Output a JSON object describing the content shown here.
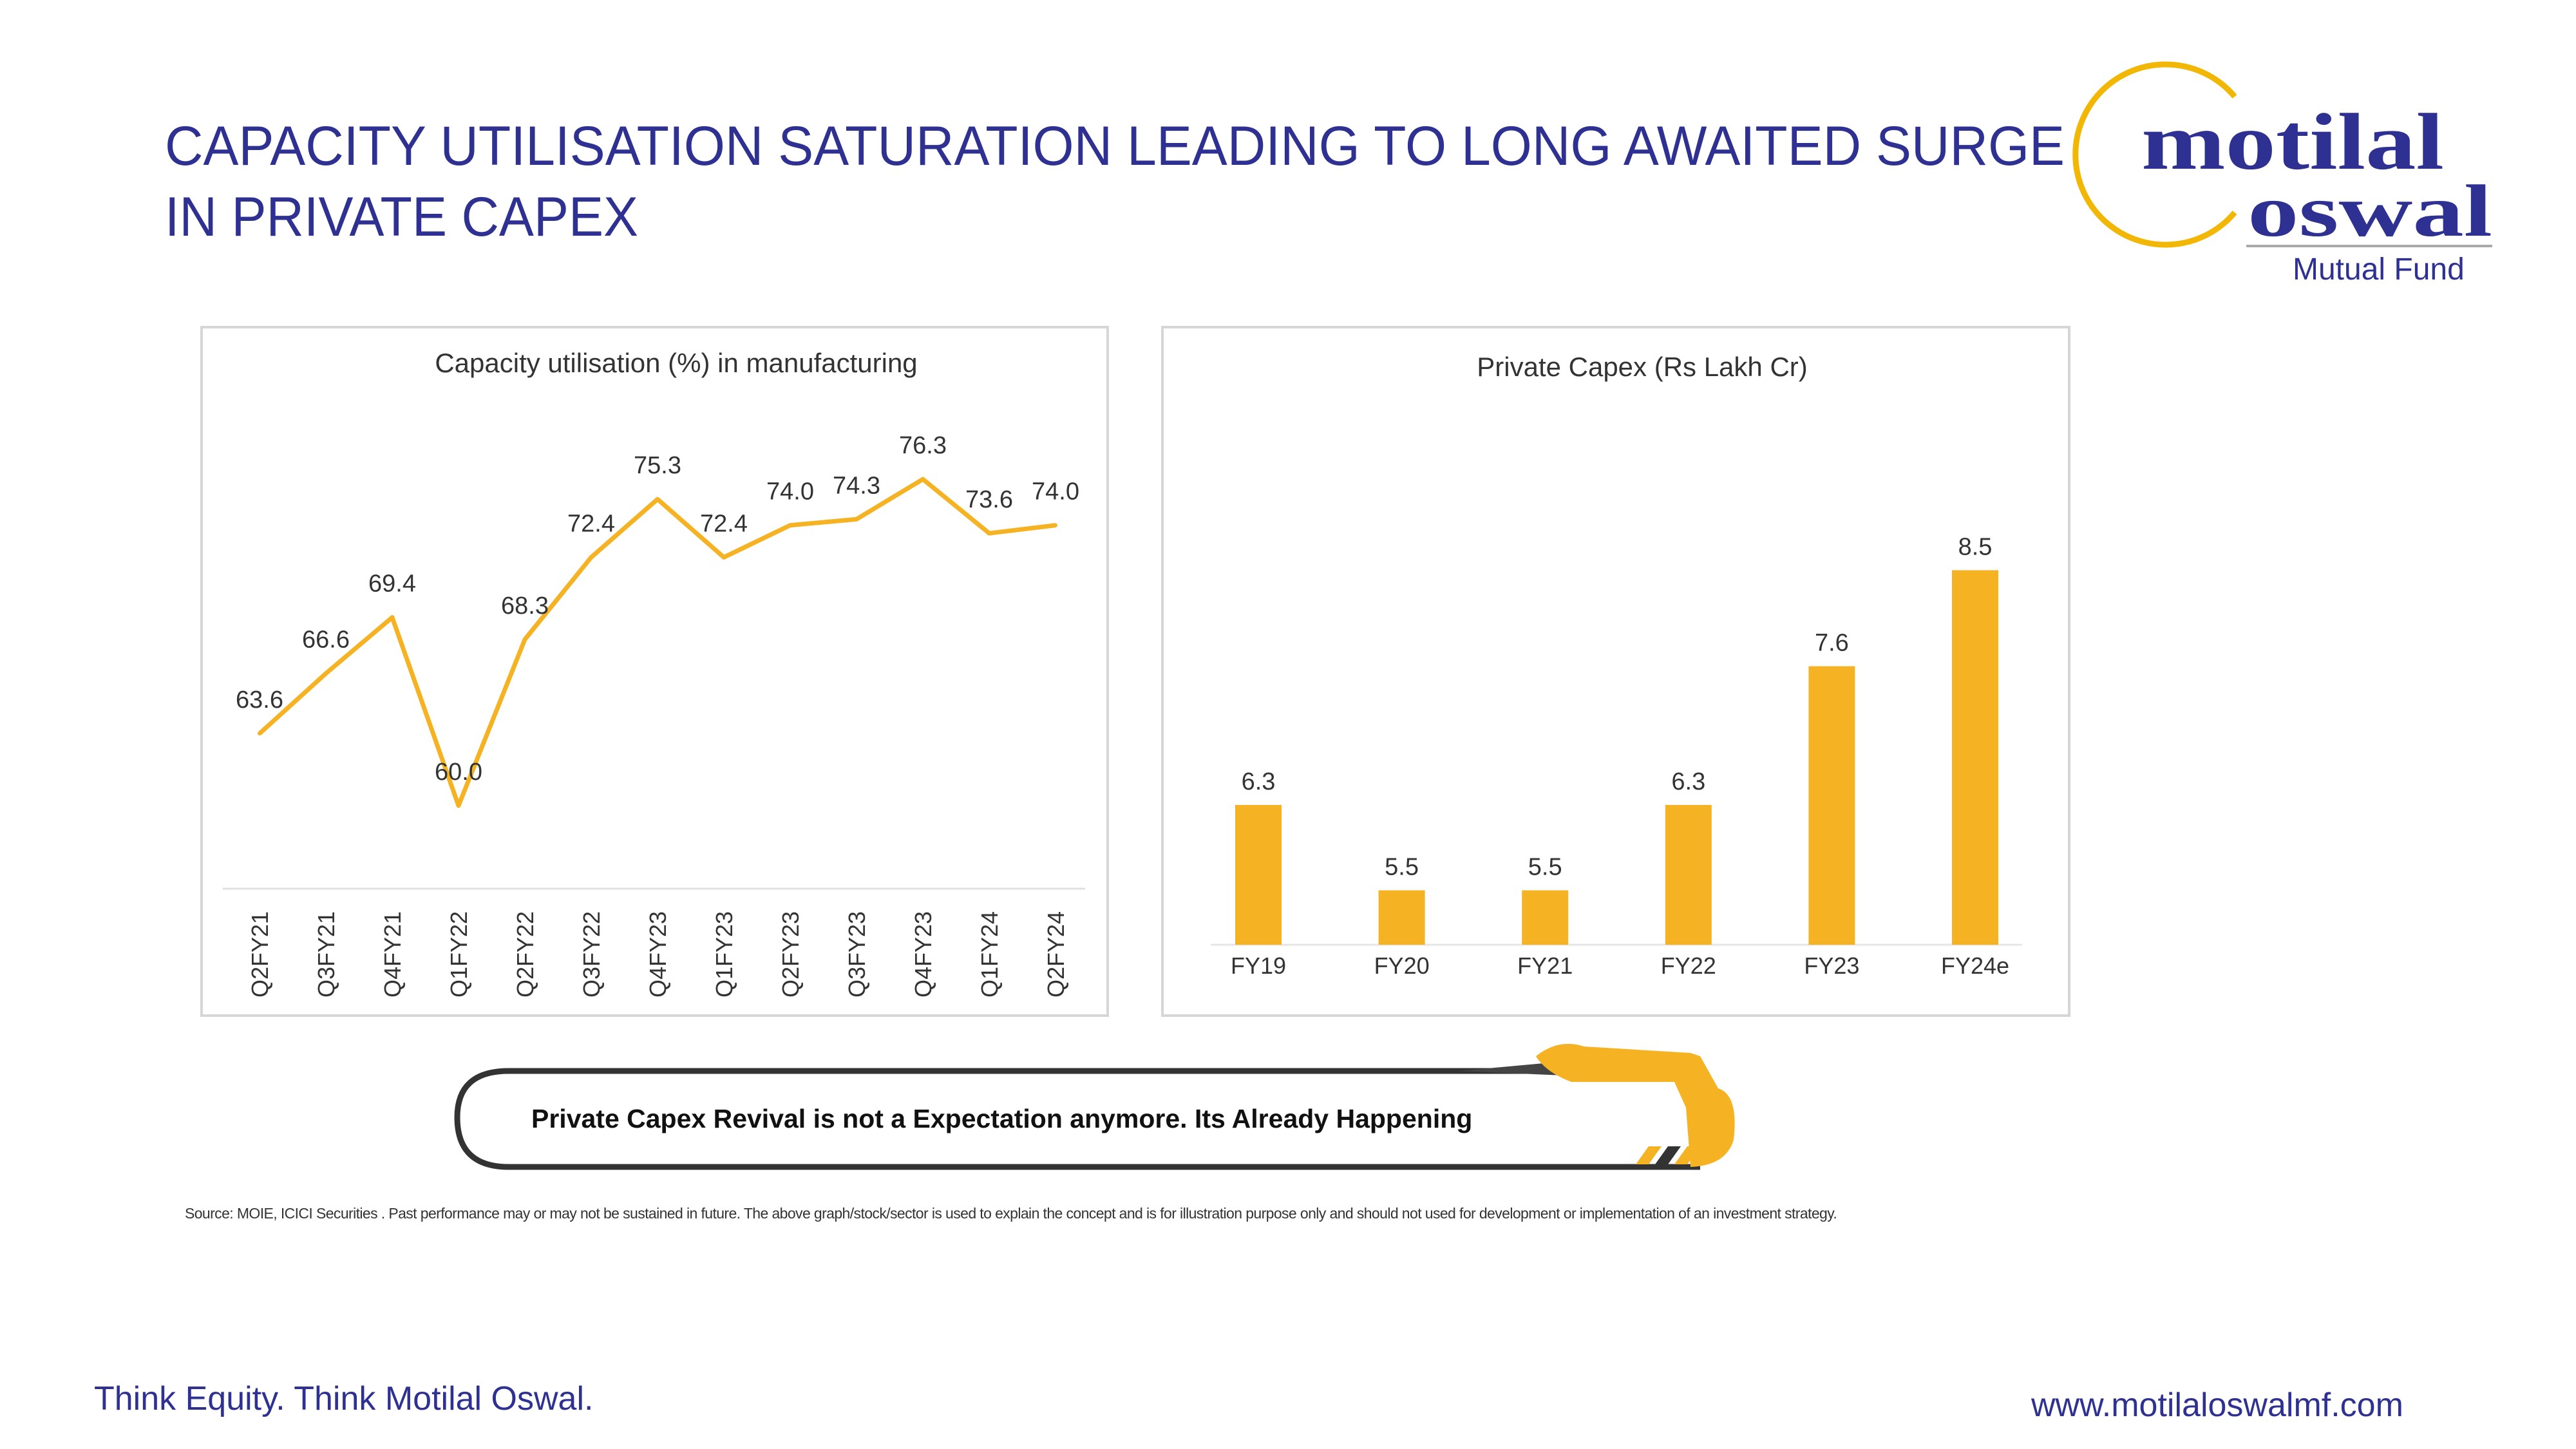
{
  "slide": {
    "title_line1": "CAPACITY UTILISATION SATURATION LEADING TO LONG AWAITED SURGE",
    "title_line2": "IN PRIVATE CAPEX",
    "banner": "Private Capex Revival is not a Expectation anymore. Its Already Happening",
    "footnote": "Source: MOIE, ICICI Securities . Past performance may or may not be sustained in future. The above graph/stock/sector is used to explain the concept and is for illustration purpose only and should not used for development or implementation of an investment strategy.",
    "tagline": "Think Equity. Think Motilal Oswal.",
    "website": "www.motilaloswalmf.com"
  },
  "logo": {
    "line1": "motilal",
    "line2": "oswal",
    "subtitle": "Mutual Fund",
    "brand_color": "#2e3192",
    "ring_color": "#f2b705"
  },
  "colors": {
    "series": "#f5b324",
    "title": "#2e3192"
  },
  "chart_data": [
    {
      "type": "line",
      "title": "Capacity utilisation (%) in manufacturing",
      "categories": [
        "Q2FY21",
        "Q3FY21",
        "Q4FY21",
        "Q1FY22",
        "Q2FY22",
        "Q3FY22",
        "Q4FY23",
        "Q1FY23",
        "Q2FY23",
        "Q3FY23",
        "Q4FY23",
        "Q1FY24",
        "Q2FY24"
      ],
      "values": [
        63.6,
        66.6,
        69.4,
        60.0,
        68.3,
        72.4,
        75.3,
        72.4,
        74.0,
        74.3,
        76.3,
        73.6,
        74.0
      ],
      "data_labels": [
        "63.6",
        "66.6",
        "69.4",
        "60.0",
        "68.3",
        "72.4",
        "75.3",
        "72.4",
        "74.0",
        "74.3",
        "76.3",
        "73.6",
        "74.0"
      ],
      "grid": false,
      "legend": "none"
    },
    {
      "type": "bar",
      "title": "Private Capex (Rs Lakh Cr)",
      "categories": [
        "FY19",
        "FY20",
        "FY21",
        "FY22",
        "FY23",
        "FY24e"
      ],
      "values": [
        6.3,
        5.5,
        5.5,
        6.3,
        7.6,
        8.5
      ],
      "data_labels": [
        "6.3",
        "5.5",
        "5.5",
        "6.3",
        "7.6",
        "8.5"
      ],
      "ylim": [
        5,
        8.5
      ],
      "grid": false,
      "legend": "none"
    }
  ]
}
